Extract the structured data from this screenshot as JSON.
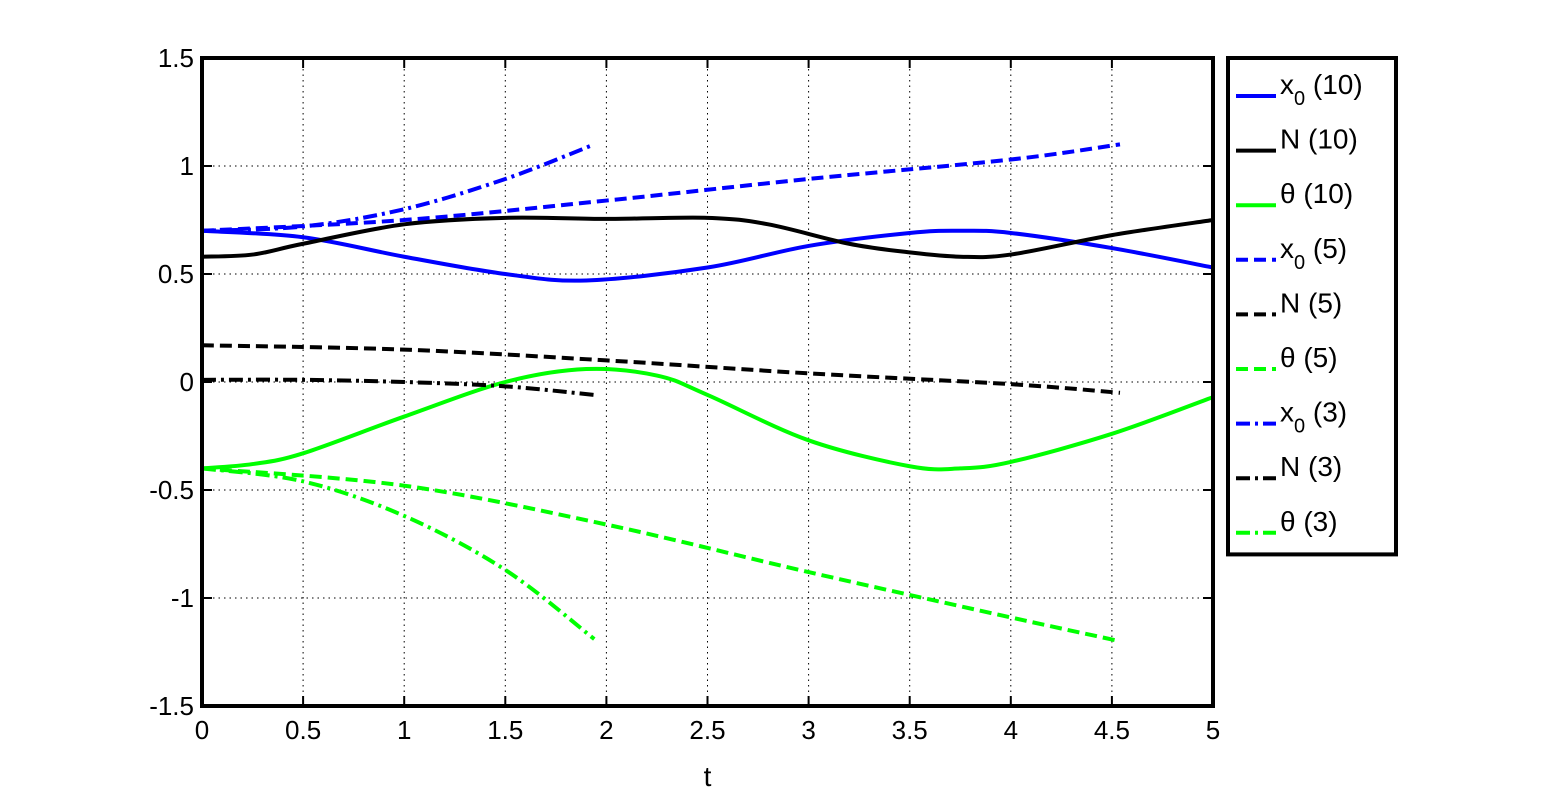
{
  "chart_data": {
    "type": "line",
    "xlabel": "t",
    "ylabel": "",
    "title": "",
    "xlim": [
      0,
      5
    ],
    "ylim": [
      -1.5,
      1.5
    ],
    "xticks": [
      0,
      0.5,
      1,
      1.5,
      2,
      2.5,
      3,
      3.5,
      4,
      4.5,
      5
    ],
    "xtick_labels": [
      "0",
      "0.5",
      "1",
      "1.5",
      "2",
      "2.5",
      "3",
      "3.5",
      "4",
      "4.5",
      "5"
    ],
    "yticks": [
      -1.5,
      -1,
      -0.5,
      0,
      0.5,
      1,
      1.5
    ],
    "ytick_labels": [
      "-1.5",
      "-1",
      "-0.5",
      "0",
      "0.5",
      "1",
      "1.5"
    ],
    "grid": true,
    "legend_position": "outside-right",
    "series": [
      {
        "name": "x0 (10)",
        "label_base": "x",
        "label_sub": "0",
        "label_tail": " (10)",
        "color": "#0000ff",
        "style": "solid",
        "x": [
          0,
          0.5,
          1,
          1.5,
          1.9,
          2.5,
          3,
          3.5,
          3.75,
          4,
          4.5,
          5
        ],
        "y": [
          0.7,
          0.67,
          0.58,
          0.5,
          0.47,
          0.53,
          0.63,
          0.69,
          0.7,
          0.69,
          0.62,
          0.53
        ]
      },
      {
        "name": "N (10)",
        "label_base": "N",
        "label_sub": "",
        "label_tail": " (10)",
        "color": "#000000",
        "style": "solid",
        "x": [
          0,
          0.25,
          0.5,
          1,
          1.5,
          2,
          2.5,
          2.8,
          3.2,
          3.5,
          3.75,
          4,
          4.5,
          5
        ],
        "y": [
          0.58,
          0.59,
          0.64,
          0.73,
          0.76,
          0.755,
          0.76,
          0.73,
          0.64,
          0.6,
          0.58,
          0.59,
          0.68,
          0.75
        ]
      },
      {
        "name": "θ (10)",
        "label_base": "θ",
        "label_sub": "",
        "label_tail": " (10)",
        "color": "#00ff00",
        "style": "solid",
        "x": [
          0,
          0.25,
          0.5,
          1,
          1.5,
          1.9,
          2.25,
          2.5,
          3,
          3.5,
          3.75,
          4,
          4.5,
          5
        ],
        "y": [
          -0.4,
          -0.38,
          -0.33,
          -0.16,
          0.0,
          0.06,
          0.03,
          -0.06,
          -0.27,
          -0.39,
          -0.4,
          -0.37,
          -0.24,
          -0.07
        ]
      },
      {
        "name": "x0 (5)",
        "label_base": "x",
        "label_sub": "0",
        "label_tail": " (5)",
        "color": "#0000ff",
        "style": "dashed",
        "x": [
          0,
          1,
          2,
          3,
          4,
          4.54
        ],
        "y": [
          0.7,
          0.75,
          0.84,
          0.94,
          1.03,
          1.1
        ]
      },
      {
        "name": "N (5)",
        "label_base": "N",
        "label_sub": "",
        "label_tail": " (5)",
        "color": "#000000",
        "style": "dashed",
        "x": [
          0,
          1,
          2,
          3,
          4,
          4.54
        ],
        "y": [
          0.17,
          0.15,
          0.1,
          0.04,
          -0.01,
          -0.05
        ]
      },
      {
        "name": "θ (5)",
        "label_base": "θ",
        "label_sub": "",
        "label_tail": " (5)",
        "color": "#00ff00",
        "style": "dashed",
        "x": [
          0,
          1,
          2,
          3,
          4,
          4.54
        ],
        "y": [
          -0.4,
          -0.48,
          -0.66,
          -0.88,
          -1.09,
          -1.2
        ]
      },
      {
        "name": "x0 (3)",
        "label_base": "x",
        "label_sub": "0",
        "label_tail": " (3)",
        "color": "#0000ff",
        "style": "dashdot",
        "x": [
          0,
          0.5,
          1,
          1.5,
          1.94
        ],
        "y": [
          0.7,
          0.72,
          0.8,
          0.94,
          1.1
        ]
      },
      {
        "name": "N (3)",
        "label_base": "N",
        "label_sub": "",
        "label_tail": " (3)",
        "color": "#000000",
        "style": "dashdot",
        "x": [
          0,
          0.5,
          1,
          1.5,
          1.94
        ],
        "y": [
          0.01,
          0.01,
          0.0,
          -0.02,
          -0.06
        ]
      },
      {
        "name": "θ (3)",
        "label_base": "θ",
        "label_sub": "",
        "label_tail": " (3)",
        "color": "#00ff00",
        "style": "dashdot",
        "x": [
          0,
          0.5,
          1,
          1.5,
          1.94
        ],
        "y": [
          -0.4,
          -0.46,
          -0.62,
          -0.87,
          -1.19
        ]
      }
    ]
  }
}
